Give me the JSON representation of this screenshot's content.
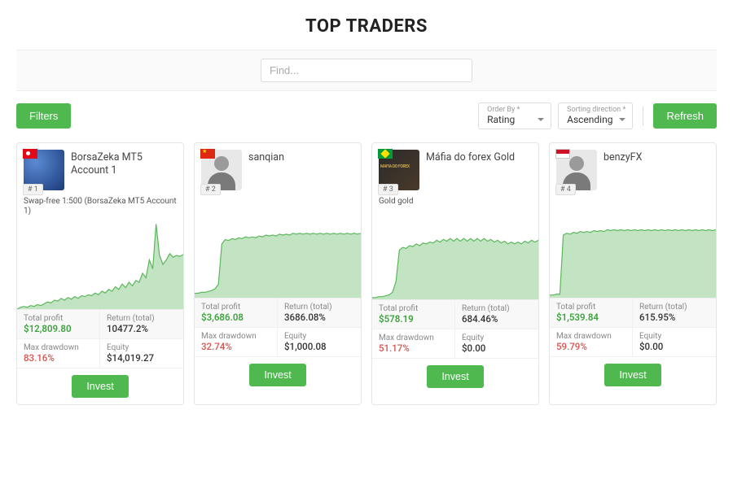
{
  "title": "TOP TRADERS",
  "search": {
    "placeholder": "Find..."
  },
  "controls": {
    "filters_label": "Filters",
    "order_by": {
      "label": "Order By *",
      "value": "Rating"
    },
    "sort_dir": {
      "label": "Sorting direction *",
      "value": "Ascending"
    },
    "refresh_label": "Refresh"
  },
  "labels": {
    "total_profit": "Total profit",
    "return_total": "Return (total)",
    "max_drawdown": "Max drawdown",
    "equity": "Equity",
    "invest": "Invest"
  },
  "colors": {
    "accent": "#4fb84f",
    "chart_fill": "#a9d9a9",
    "chart_stroke": "#5cb85c",
    "profit": "#3fa33f",
    "drawdown": "#d9534f",
    "text": "#333333",
    "muted": "#888888",
    "border": "#e5e5e5"
  },
  "traders": [
    {
      "rank": "# 1",
      "name": "BorsaZeka MT5 Account 1",
      "flag": "tr",
      "avatar_variant": "tr",
      "subtitle": "Swap-free 1:500 (BorsaZeka MT5 Account 1)",
      "profit": "$12,809.80",
      "return": "10477.2%",
      "drawdown": "83.16%",
      "equity": "$14,019.27",
      "chart": {
        "type": "area",
        "ylim": [
          0,
          100
        ],
        "points": [
          0,
          2,
          3,
          2,
          4,
          3,
          5,
          4,
          6,
          8,
          7,
          10,
          9,
          12,
          10,
          13,
          11,
          14,
          12,
          15,
          14,
          16,
          15,
          18,
          16,
          20,
          18,
          22,
          20,
          25,
          22,
          28,
          24,
          30,
          26,
          32,
          30,
          40,
          35,
          55,
          45,
          95,
          60,
          50,
          55,
          62,
          58,
          60,
          59,
          61
        ]
      }
    },
    {
      "rank": "# 2",
      "name": "sanqian",
      "flag": "cn",
      "avatar_variant": "person",
      "subtitle": "",
      "profit": "$3,686.08",
      "return": "3686.08%",
      "drawdown": "32.74%",
      "equity": "$1,000.08",
      "chart": {
        "type": "area",
        "ylim": [
          0,
          100
        ],
        "points": [
          5,
          5,
          6,
          6,
          7,
          8,
          10,
          15,
          60,
          65,
          64,
          66,
          65,
          67,
          66,
          68,
          67,
          68,
          67,
          69,
          68,
          70,
          69,
          70,
          69,
          71,
          70,
          71,
          70,
          72,
          71,
          72,
          71,
          72,
          71,
          72,
          71,
          72,
          71,
          72,
          71,
          72,
          71,
          72,
          71,
          72,
          71,
          72,
          71,
          72
        ]
      }
    },
    {
      "rank": "# 3",
      "name": "Máfia do forex Gold",
      "flag": "br",
      "avatar_variant": "br",
      "subtitle": "Gold gold",
      "profit": "$578.19",
      "return": "684.46%",
      "drawdown": "51.17%",
      "equity": "$0.00",
      "chart": {
        "type": "area",
        "ylim": [
          0,
          100
        ],
        "points": [
          2,
          2,
          3,
          3,
          4,
          5,
          8,
          20,
          55,
          58,
          57,
          60,
          59,
          62,
          60,
          63,
          62,
          64,
          63,
          66,
          64,
          67,
          65,
          68,
          65,
          68,
          65,
          68,
          65,
          68,
          65,
          68,
          65,
          68,
          65,
          67,
          64,
          66,
          63,
          65,
          62,
          64,
          62,
          64,
          62,
          65,
          63,
          66,
          64,
          66
        ]
      }
    },
    {
      "rank": "# 4",
      "name": "benzyFX",
      "flag": "id",
      "avatar_variant": "person",
      "subtitle": "",
      "profit": "$1,539.84",
      "return": "615.95%",
      "drawdown": "59.79%",
      "equity": "$0.00",
      "chart": {
        "type": "area",
        "ylim": [
          0,
          100
        ],
        "points": [
          3,
          3,
          4,
          4,
          70,
          72,
          71,
          73,
          72,
          74,
          73,
          74,
          73,
          75,
          74,
          75,
          74,
          76,
          75,
          76,
          75,
          76,
          75,
          76,
          75,
          76,
          75,
          76,
          75,
          76,
          75,
          76,
          75,
          76,
          75,
          76,
          75,
          76,
          75,
          76,
          75,
          76,
          75,
          76,
          75,
          76,
          75,
          76,
          75,
          76
        ]
      }
    }
  ]
}
